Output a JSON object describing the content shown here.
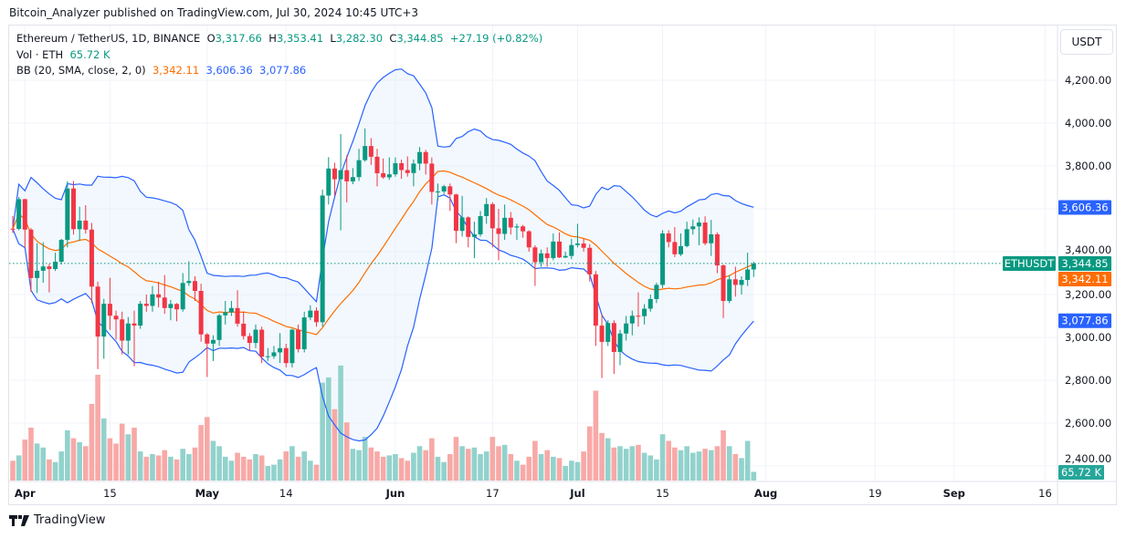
{
  "published": "Bitcoin_Analyzer published on TradingView.com, Jul 30, 2024 10:45 UTC+3",
  "legend": {
    "symbol": "Ethereum / TetherUS, 1D, BINANCE",
    "o_label": "O",
    "o": "3,317.66",
    "h_label": "H",
    "h": "3,353.41",
    "l_label": "L",
    "l": "3,282.30",
    "c_label": "C",
    "c": "3,344.85",
    "change": "+27.19 (+0.82%)",
    "vol_label": "Vol · ETH",
    "vol": "65.72 K",
    "bb_label": "BB (20, SMA, close, 2, 0)",
    "bb_basis": "3,342.11",
    "bb_upper": "3,606.36",
    "bb_lower": "3,077.86"
  },
  "axis": {
    "unit": "USDT",
    "price_ticks": [
      "4,200.00",
      "4,000.00",
      "3,800.00",
      "3,400.00",
      "3,200.00",
      "3,000.00",
      "2,800.00",
      "2,600.00",
      "2,400.00"
    ],
    "time_ticks": [
      {
        "label": "Apr",
        "bold": true
      },
      {
        "label": "15"
      },
      {
        "label": "May",
        "bold": true
      },
      {
        "label": "14"
      },
      {
        "label": "Jun",
        "bold": true
      },
      {
        "label": "17"
      },
      {
        "label": "Jul",
        "bold": true
      },
      {
        "label": "15"
      },
      {
        "label": "Aug",
        "bold": true
      },
      {
        "label": "19"
      },
      {
        "label": "Sep",
        "bold": true
      },
      {
        "label": "16"
      }
    ],
    "badges": {
      "symbol": "ETHUSDT",
      "last": "3,344.85",
      "basis": "3,342.11",
      "upper": "3,606.36",
      "lower": "3,077.86",
      "volume": "65.72 K"
    }
  },
  "colors": {
    "up": "#089981",
    "down": "#f23645",
    "band": "#2962ff",
    "basis": "#ff6d00",
    "vol_up": "#92d2cc",
    "vol_down": "#f7a9a7",
    "fill": "#e3f0fd"
  },
  "brand": "TradingView",
  "chart_data": {
    "type": "candlestick",
    "interval": "1D",
    "start_date": "2024-03-30",
    "end_date": "2024-07-30",
    "ylim": [
      2400,
      4300
    ],
    "indicators": [
      "Volume",
      "Bollinger Bands (20, 2)"
    ],
    "ohlc": [
      [
        3507,
        3566,
        3487,
        3506
      ],
      [
        3506,
        3655,
        3500,
        3645
      ],
      [
        3645,
        3647,
        3420,
        3503
      ],
      [
        3503,
        3510,
        3213,
        3277
      ],
      [
        3277,
        3440,
        3207,
        3311
      ],
      [
        3311,
        3444,
        3255,
        3331
      ],
      [
        3331,
        3343,
        3210,
        3319
      ],
      [
        3319,
        3395,
        3310,
        3353
      ],
      [
        3353,
        3460,
        3340,
        3455
      ],
      [
        3455,
        3729,
        3420,
        3695
      ],
      [
        3695,
        3730,
        3480,
        3505
      ],
      [
        3505,
        3610,
        3450,
        3545
      ],
      [
        3545,
        3617,
        3484,
        3503
      ],
      [
        3503,
        3534,
        3160,
        3237
      ],
      [
        3237,
        3260,
        2852,
        3004
      ],
      [
        3004,
        3180,
        2900,
        3157
      ],
      [
        3157,
        3278,
        3035,
        3101
      ],
      [
        3101,
        3125,
        2990,
        3084
      ],
      [
        3084,
        3120,
        2920,
        2985
      ],
      [
        2985,
        3095,
        2920,
        3065
      ],
      [
        3065,
        3125,
        2865,
        3055
      ],
      [
        3055,
        3170,
        3040,
        3157
      ],
      [
        3157,
        3200,
        3120,
        3147
      ],
      [
        3147,
        3240,
        3120,
        3201
      ],
      [
        3201,
        3260,
        3140,
        3186
      ],
      [
        3186,
        3291,
        3110,
        3137
      ],
      [
        3137,
        3175,
        3080,
        3156
      ],
      [
        3156,
        3160,
        3075,
        3131
      ],
      [
        3131,
        3300,
        3120,
        3254
      ],
      [
        3254,
        3355,
        3240,
        3263
      ],
      [
        3263,
        3285,
        3170,
        3217
      ],
      [
        3217,
        3250,
        2980,
        3014
      ],
      [
        3014,
        3020,
        2815,
        2971
      ],
      [
        2971,
        3010,
        2890,
        2988
      ],
      [
        2988,
        3110,
        2960,
        3103
      ],
      [
        3103,
        3170,
        3060,
        3117
      ],
      [
        3117,
        3170,
        3100,
        3137
      ],
      [
        3137,
        3220,
        3050,
        3064
      ],
      [
        3064,
        3120,
        2990,
        3006
      ],
      [
        3006,
        3020,
        2940,
        2974
      ],
      [
        2974,
        3060,
        2950,
        3036
      ],
      [
        3036,
        3050,
        2880,
        2910
      ],
      [
        2910,
        2950,
        2890,
        2912
      ],
      [
        2912,
        2960,
        2900,
        2930
      ],
      [
        2930,
        3020,
        2880,
        2950
      ],
      [
        2950,
        2970,
        2860,
        2880
      ],
      [
        2880,
        3040,
        2860,
        3036
      ],
      [
        3036,
        3060,
        2930,
        2945
      ],
      [
        2945,
        3120,
        2930,
        3093
      ],
      [
        3093,
        3150,
        3080,
        3125
      ],
      [
        3125,
        3140,
        3050,
        3071
      ],
      [
        3071,
        3690,
        3050,
        3662
      ],
      [
        3662,
        3841,
        3620,
        3788
      ],
      [
        3788,
        3815,
        3660,
        3738
      ],
      [
        3738,
        3949,
        3500,
        3780
      ],
      [
        3780,
        3850,
        3630,
        3728
      ],
      [
        3728,
        3790,
        3715,
        3748
      ],
      [
        3748,
        3880,
        3730,
        3827
      ],
      [
        3827,
        3975,
        3820,
        3893
      ],
      [
        3893,
        3930,
        3805,
        3843
      ],
      [
        3843,
        3880,
        3705,
        3766
      ],
      [
        3766,
        3835,
        3740,
        3747
      ],
      [
        3747,
        3840,
        3735,
        3761
      ],
      [
        3761,
        3840,
        3750,
        3813
      ],
      [
        3813,
        3830,
        3740,
        3781
      ],
      [
        3781,
        3845,
        3750,
        3767
      ],
      [
        3767,
        3830,
        3705,
        3811
      ],
      [
        3811,
        3888,
        3780,
        3865
      ],
      [
        3865,
        3875,
        3760,
        3811
      ],
      [
        3811,
        3840,
        3620,
        3679
      ],
      [
        3679,
        3718,
        3640,
        3681
      ],
      [
        3681,
        3712,
        3670,
        3705
      ],
      [
        3705,
        3718,
        3590,
        3667
      ],
      [
        3667,
        3670,
        3440,
        3497
      ],
      [
        3497,
        3660,
        3470,
        3560
      ],
      [
        3560,
        3565,
        3420,
        3469
      ],
      [
        3469,
        3540,
        3370,
        3481
      ],
      [
        3481,
        3590,
        3470,
        3566
      ],
      [
        3566,
        3650,
        3530,
        3622
      ],
      [
        3622,
        3630,
        3420,
        3509
      ],
      [
        3509,
        3600,
        3360,
        3483
      ],
      [
        3483,
        3620,
        3455,
        3558
      ],
      [
        3558,
        3585,
        3480,
        3513
      ],
      [
        3513,
        3530,
        3455,
        3518
      ],
      [
        3518,
        3525,
        3465,
        3495
      ],
      [
        3495,
        3500,
        3400,
        3420
      ],
      [
        3420,
        3430,
        3240,
        3351
      ],
      [
        3351,
        3410,
        3330,
        3392
      ],
      [
        3392,
        3420,
        3330,
        3370
      ],
      [
        3370,
        3485,
        3360,
        3447
      ],
      [
        3447,
        3490,
        3370,
        3373
      ],
      [
        3373,
        3400,
        3370,
        3380
      ],
      [
        3380,
        3460,
        3365,
        3431
      ],
      [
        3431,
        3530,
        3420,
        3438
      ],
      [
        3438,
        3460,
        3400,
        3418
      ],
      [
        3418,
        3435,
        3260,
        3294
      ],
      [
        3294,
        3310,
        2960,
        3055
      ],
      [
        3055,
        3110,
        2810,
        2979
      ],
      [
        2979,
        3080,
        2960,
        3067
      ],
      [
        3067,
        3080,
        2830,
        2932
      ],
      [
        2932,
        3035,
        2870,
        3018
      ],
      [
        3018,
        3100,
        2985,
        3065
      ],
      [
        3065,
        3125,
        3010,
        3101
      ],
      [
        3101,
        3210,
        3050,
        3099
      ],
      [
        3099,
        3155,
        3060,
        3134
      ],
      [
        3134,
        3200,
        3120,
        3179
      ],
      [
        3179,
        3255,
        3160,
        3245
      ],
      [
        3245,
        3500,
        3230,
        3485
      ],
      [
        3485,
        3500,
        3420,
        3445
      ],
      [
        3445,
        3515,
        3375,
        3388
      ],
      [
        3388,
        3485,
        3380,
        3426
      ],
      [
        3426,
        3540,
        3420,
        3505
      ],
      [
        3505,
        3550,
        3480,
        3518
      ],
      [
        3518,
        3560,
        3430,
        3536
      ],
      [
        3536,
        3565,
        3430,
        3439
      ],
      [
        3439,
        3548,
        3380,
        3481
      ],
      [
        3481,
        3490,
        3300,
        3336
      ],
      [
        3336,
        3340,
        3090,
        3170
      ],
      [
        3170,
        3290,
        3160,
        3271
      ],
      [
        3271,
        3330,
        3190,
        3245
      ],
      [
        3245,
        3285,
        3200,
        3268
      ],
      [
        3268,
        3395,
        3240,
        3317
      ],
      [
        3317,
        3353,
        3282,
        3345
      ]
    ],
    "volume_k": [
      150,
      190,
      310,
      400,
      280,
      250,
      160,
      140,
      220,
      380,
      320,
      290,
      260,
      580,
      800,
      470,
      320,
      280,
      430,
      350,
      400,
      220,
      180,
      200,
      190,
      230,
      180,
      160,
      240,
      200,
      250,
      420,
      480,
      300,
      260,
      180,
      150,
      210,
      180,
      160,
      200,
      190,
      110,
      120,
      160,
      220,
      260,
      180,
      220,
      150,
      120,
      740,
      780,
      540,
      870,
      440,
      240,
      230,
      330,
      250,
      220,
      180,
      190,
      200,
      170,
      150,
      210,
      260,
      230,
      320,
      180,
      140,
      200,
      330,
      260,
      240,
      250,
      200,
      220,
      330,
      260,
      270,
      200,
      150,
      120,
      180,
      300,
      200,
      230,
      180,
      170,
      110,
      150,
      140,
      220,
      410,
      680,
      360,
      320,
      250,
      260,
      240,
      260,
      270,
      210,
      190,
      160,
      350,
      300,
      250,
      230,
      260,
      210,
      220,
      240,
      230,
      260,
      380,
      260,
      200,
      170,
      300,
      66
    ]
  }
}
